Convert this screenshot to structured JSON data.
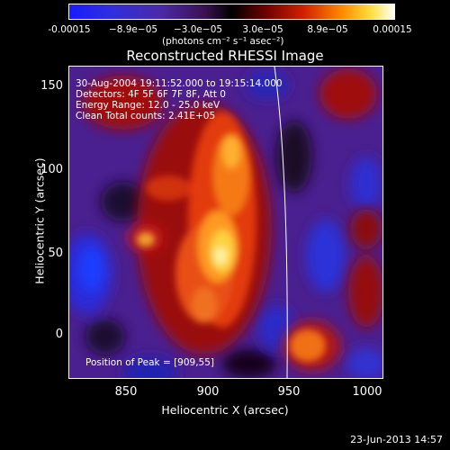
{
  "colorbar": {
    "tick_labels": [
      "-0.00015",
      "−8.9e−05",
      "−3.0e−05",
      "3.0e−05",
      "8.9e−05",
      "0.00015"
    ],
    "units": "(photons cm⁻² s⁻¹ asec⁻²)"
  },
  "title": "Reconstructed RHESSI Image",
  "annotations": {
    "time_range": "30-Aug-2004 19:11:52.000 to 19:15:14.000",
    "detectors": "Detectors: 4F 5F 6F 7F 8F, Att 0",
    "energy_range": "Energy Range: 12.0 - 25.0 keV",
    "clean_counts": "Clean     Total counts: 2.41E+05",
    "peak_position": "Position of Peak = [909,55]"
  },
  "axes": {
    "xlabel": "Heliocentric X (arcsec)",
    "ylabel": "Heliocentric Y (arcsec)",
    "x_ticks": [
      "850",
      "900",
      "950",
      "1000"
    ],
    "y_ticks": [
      "150",
      "100",
      "50",
      "0"
    ],
    "xlim": [
      815,
      1012
    ],
    "ylim": [
      -33,
      163
    ]
  },
  "footer": {
    "date": "23-Jun-2013 14:57"
  }
}
